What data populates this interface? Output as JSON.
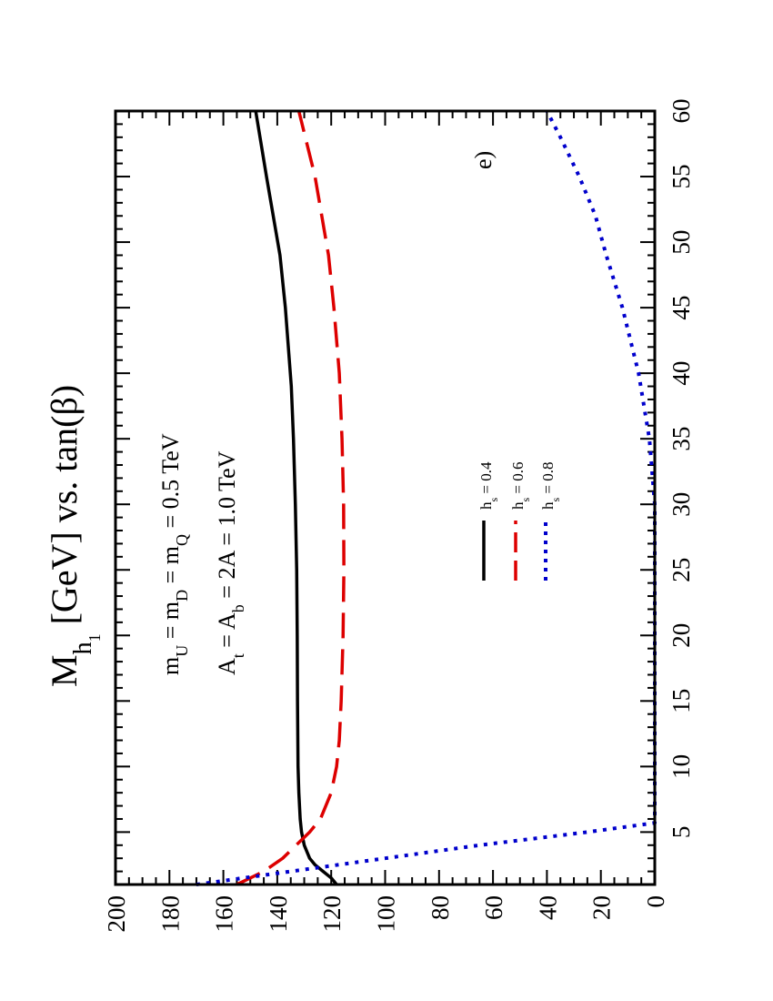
{
  "chart_data": {
    "type": "line",
    "orientation": "rotated-90-ccw",
    "title": {
      "main": "M",
      "sub1": "h",
      "sub2": "1",
      "rest": "  [GeV] vs. tan(β)"
    },
    "xlabel": "tan(β)",
    "ylabel": "M_h1 [GeV]",
    "xlim": [
      1,
      60
    ],
    "ylim": [
      0,
      200
    ],
    "x_ticks": [
      5,
      10,
      15,
      20,
      25,
      30,
      35,
      40,
      45,
      50,
      55,
      60
    ],
    "y_ticks": [
      0,
      20,
      40,
      60,
      80,
      100,
      120,
      140,
      160,
      180,
      200
    ],
    "annotations": [
      {
        "main": "m",
        "parts": [
          [
            "U",
            true
          ],
          [
            " = m",
            false
          ],
          [
            "D",
            true
          ],
          [
            " = m",
            false
          ],
          [
            "Q",
            true
          ],
          [
            " = 0.5 TeV",
            false
          ]
        ]
      },
      {
        "main": "A",
        "parts": [
          [
            "t",
            true
          ],
          [
            " = A",
            false
          ],
          [
            "b",
            true
          ],
          [
            " = 2A = 1.0 TeV",
            false
          ]
        ]
      }
    ],
    "panel_label": "e)",
    "series": [
      {
        "name": "h_s = 0.4",
        "label_main": "h",
        "label_sub": "s",
        "label_rest": " = 0.4",
        "color": "#000000",
        "dash": "solid",
        "x": [
          1,
          1.5,
          2,
          2.5,
          3,
          4,
          5,
          6,
          8,
          10,
          15,
          20,
          25,
          30,
          35,
          39,
          45,
          49,
          55,
          60
        ],
        "y": [
          118,
          120,
          123,
          126,
          128,
          130,
          131,
          131.5,
          132,
          132.3,
          132.5,
          132.6,
          132.8,
          133.3,
          134,
          134.8,
          137,
          139,
          144,
          148
        ]
      },
      {
        "name": "h_s = 0.6",
        "label_main": "h",
        "label_sub": "s",
        "label_rest": " = 0.6",
        "color": "#dd0000",
        "dash": "long-dash",
        "x": [
          1,
          1.5,
          2,
          3,
          4,
          5,
          6,
          8,
          10,
          12,
          15,
          20,
          25,
          30,
          35,
          40,
          45,
          49,
          55,
          60
        ],
        "y": [
          155,
          150,
          145,
          138,
          133,
          128,
          124,
          120,
          118,
          117,
          116.3,
          115.6,
          115.3,
          115.4,
          116,
          117,
          119,
          121,
          126,
          132
        ]
      },
      {
        "name": "h_s = 0.8",
        "label_main": "h",
        "label_sub": "s",
        "label_rest": " = 0.8",
        "color": "#0000cc",
        "dash": "dotted",
        "x": [
          1,
          2,
          3,
          4,
          5,
          5.7,
          10,
          15,
          20,
          25,
          30,
          35,
          40,
          45,
          49,
          52,
          55,
          58,
          60
        ],
        "y": [
          170,
          135,
          100,
          65,
          25,
          0,
          0,
          0,
          0,
          0,
          0,
          2,
          6,
          12,
          18,
          22,
          28,
          35,
          40
        ]
      }
    ]
  }
}
